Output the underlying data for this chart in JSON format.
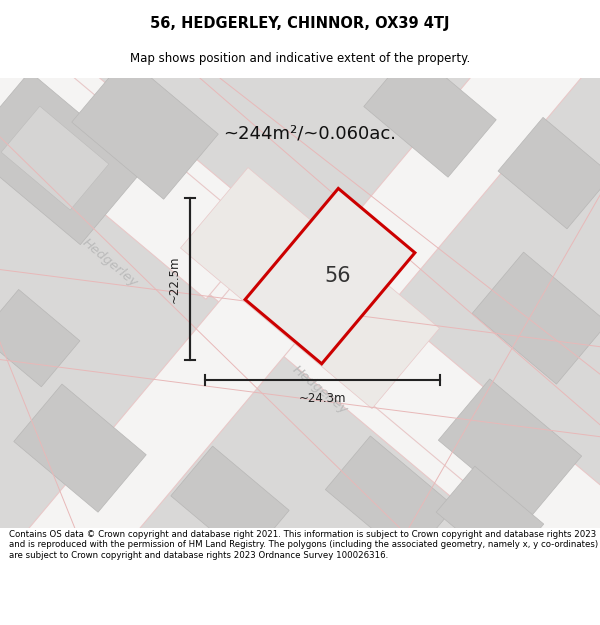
{
  "title_line1": "56, HEDGERLEY, CHINNOR, OX39 4TJ",
  "title_line2": "Map shows position and indicative extent of the property.",
  "footer_text": "Contains OS data © Crown copyright and database right 2021. This information is subject to Crown copyright and database rights 2023 and is reproduced with the permission of HM Land Registry. The polygons (including the associated geometry, namely x, y co-ordinates) are subject to Crown copyright and database rights 2023 Ordnance Survey 100026316.",
  "area_label": "~244m²/~0.060ac.",
  "plot_number": "56",
  "dim_height": "~22.5m",
  "dim_width": "~24.3m",
  "street_label_1": "Hedgerley",
  "street_label_2": "Hedgerley",
  "map_bg": "#d9d8d7",
  "road_fill": "#f5f4f3",
  "road_edge": "#e8c8c8",
  "block_fill": "#c8c7c6",
  "block_edge": "#b8b7b6",
  "plot_fill": "#eceae8",
  "plot_stroke": "#cc0000",
  "dim_color": "#222222",
  "title_color": "#000000",
  "footer_color": "#000000",
  "street_label_color": "#bbbbbb",
  "white": "#ffffff"
}
